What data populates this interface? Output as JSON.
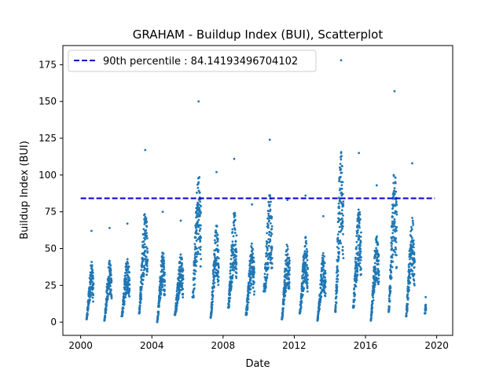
{
  "chart_data": {
    "type": "scatter",
    "title": "GRAHAM - Buildup Index (BUI), Scatterplot",
    "xlabel": "Date",
    "ylabel": "Buildup Index (BUI)",
    "xlim": [
      1999.0,
      2020.9
    ],
    "ylim": [
      -9,
      188
    ],
    "x_ticks": [
      2000,
      2004,
      2008,
      2012,
      2016,
      2020
    ],
    "y_ticks": [
      0,
      25,
      50,
      75,
      100,
      125,
      150,
      175
    ],
    "grid": false,
    "legend_position": "upper-left",
    "reference_line": {
      "label": "90th percentile : 84.14193496704102",
      "value": 84.14193496704102,
      "color": "#0000cc",
      "style": "dashed"
    },
    "point_color": "#1f77b4",
    "seasons": [
      {
        "x_start": 2000.33,
        "x_end": 2000.72,
        "peak": 62,
        "floor": 2
      },
      {
        "x_start": 2001.33,
        "x_end": 2001.74,
        "peak": 64,
        "floor": 1
      },
      {
        "x_start": 2002.3,
        "x_end": 2002.75,
        "peak": 67,
        "floor": 4
      },
      {
        "x_start": 2003.28,
        "x_end": 2003.76,
        "peak": 117,
        "floor": 6
      },
      {
        "x_start": 2004.3,
        "x_end": 2004.73,
        "peak": 75,
        "floor": 0
      },
      {
        "x_start": 2005.28,
        "x_end": 2005.76,
        "peak": 69,
        "floor": 5
      },
      {
        "x_start": 2006.28,
        "x_end": 2006.76,
        "peak": 150,
        "floor": 17
      },
      {
        "x_start": 2007.3,
        "x_end": 2007.76,
        "peak": 102,
        "floor": 3
      },
      {
        "x_start": 2008.28,
        "x_end": 2008.76,
        "peak": 111,
        "floor": 10
      },
      {
        "x_start": 2009.28,
        "x_end": 2009.76,
        "peak": 80,
        "floor": 5
      },
      {
        "x_start": 2010.28,
        "x_end": 2010.76,
        "peak": 124,
        "floor": 21
      },
      {
        "x_start": 2011.3,
        "x_end": 2011.74,
        "peak": 83,
        "floor": 2
      },
      {
        "x_start": 2012.3,
        "x_end": 2012.76,
        "peak": 86,
        "floor": 6
      },
      {
        "x_start": 2013.3,
        "x_end": 2013.76,
        "peak": 72,
        "floor": 1
      },
      {
        "x_start": 2014.3,
        "x_end": 2014.76,
        "peak": 178,
        "floor": 7
      },
      {
        "x_start": 2015.3,
        "x_end": 2015.76,
        "peak": 115,
        "floor": 10
      },
      {
        "x_start": 2016.3,
        "x_end": 2016.76,
        "peak": 93,
        "floor": 1
      },
      {
        "x_start": 2017.3,
        "x_end": 2017.76,
        "peak": 157,
        "floor": 7
      },
      {
        "x_start": 2018.28,
        "x_end": 2018.76,
        "peak": 108,
        "floor": 4
      },
      {
        "x_start": 2019.33,
        "x_end": 2019.4,
        "peak": 17,
        "floor": 6
      }
    ]
  }
}
